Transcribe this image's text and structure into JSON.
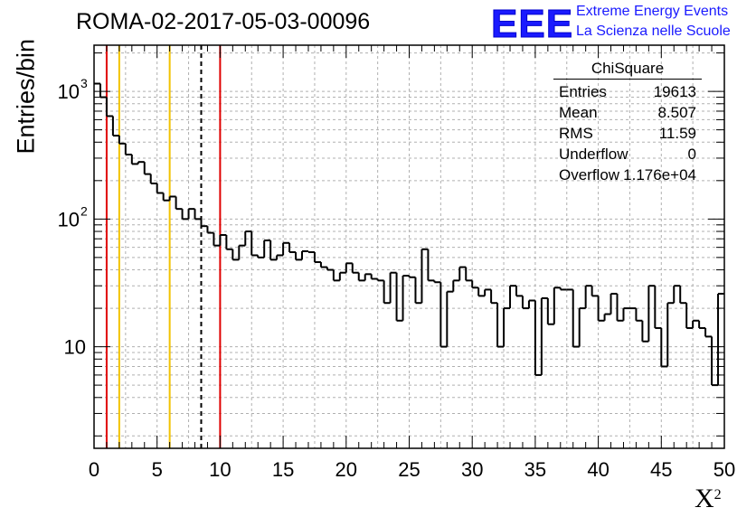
{
  "title": "ROMA-02-2017-05-03-00096",
  "logo": {
    "mark": "EEE",
    "line1": "Extreme Energy Events",
    "line2": "La Scienza nelle Scuole",
    "color": "#1a1aff"
  },
  "stats": {
    "title": "ChiSquare",
    "rows": [
      {
        "label": "Entries",
        "value": "19613"
      },
      {
        "label": "Mean",
        "value": "8.507"
      },
      {
        "label": "RMS",
        "value": "11.59"
      },
      {
        "label": "Underflow",
        "value": "0"
      },
      {
        "label": "Overflow",
        "value": "1.176e+04"
      }
    ]
  },
  "chart_data": {
    "type": "histogram",
    "title": "ROMA-02-2017-05-03-00096",
    "xlabel": "X",
    "xlabel_superscript": "2",
    "ylabel": "Entries/bin",
    "xlim": [
      0,
      50
    ],
    "ylim": [
      1.6,
      2300
    ],
    "yscale": "log",
    "grid": true,
    "bin_width": 0.5,
    "x_ticks": [
      "0",
      "5",
      "10",
      "15",
      "20",
      "25",
      "30",
      "35",
      "40",
      "45",
      "50"
    ],
    "y_ticks": [
      {
        "value": 10,
        "label": "10",
        "exp": ""
      },
      {
        "value": 100,
        "label": "10",
        "exp": "2"
      },
      {
        "value": 1000,
        "label": "10",
        "exp": "3"
      }
    ],
    "values": [
      1150,
      900,
      640,
      450,
      390,
      320,
      270,
      280,
      225,
      190,
      160,
      140,
      150,
      120,
      100,
      120,
      100,
      88,
      78,
      62,
      75,
      58,
      48,
      62,
      80,
      52,
      50,
      68,
      48,
      52,
      65,
      55,
      48,
      56,
      55,
      46,
      42,
      40,
      33,
      38,
      45,
      38,
      33,
      37,
      34,
      33,
      22,
      38,
      16,
      36,
      35,
      22,
      58,
      33,
      32,
      10,
      27,
      33,
      42,
      33,
      29,
      25,
      28,
      22,
      10,
      20,
      30,
      25,
      20,
      23,
      6,
      24,
      15,
      29,
      28,
      28,
      10,
      20,
      30,
      25,
      16,
      18,
      26,
      16,
      20,
      20,
      16,
      11,
      30,
      14,
      7,
      22,
      30,
      22,
      14,
      16,
      14,
      12,
      5,
      26
    ],
    "vertical_lines": [
      {
        "x": 1,
        "color": "#e00000",
        "style": "solid"
      },
      {
        "x": 2,
        "color": "#f2c200",
        "style": "solid"
      },
      {
        "x": 6,
        "color": "#f2c200",
        "style": "solid"
      },
      {
        "x": 8.5,
        "color": "#000000",
        "style": "dashed"
      },
      {
        "x": 10,
        "color": "#e00000",
        "style": "solid"
      }
    ]
  }
}
